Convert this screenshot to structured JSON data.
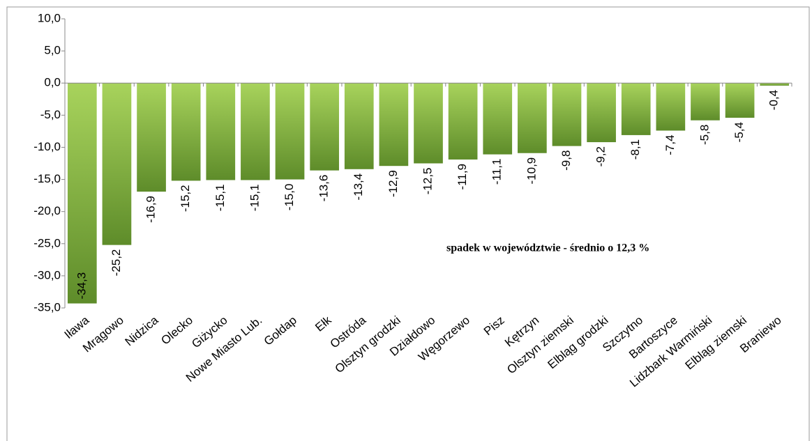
{
  "chart_data": {
    "type": "bar",
    "categories": [
      "Iława",
      "Mrągowo",
      "Nidzica",
      "Olecko",
      "Giżycko",
      "Nowe Miasto Lub.",
      "Gołdap",
      "Ełk",
      "Ostróda",
      "Olsztyn grodzki",
      "Działdowo",
      "Węgorzewo",
      "Pisz",
      "Kętrzyn",
      "Olsztyn ziemski",
      "Elbląg grodzki",
      "Szczytno",
      "Bartoszyce",
      "Lidzbark Warmiński",
      "Elbląg ziemski",
      "Braniewo"
    ],
    "values": [
      -34.3,
      -25.2,
      -16.9,
      -15.2,
      -15.1,
      -15.1,
      -15.0,
      -13.6,
      -13.4,
      -12.9,
      -12.5,
      -11.9,
      -11.1,
      -10.9,
      -9.8,
      -9.2,
      -8.1,
      -7.4,
      -5.8,
      -5.4,
      -0.4
    ],
    "value_labels": [
      "-34,3",
      "-25,2",
      "-16,9",
      "-15,2",
      "-15,1",
      "-15,1",
      "-15,0",
      "-13,6",
      "-13,4",
      "-12,9",
      "-12,5",
      "-11,9",
      "-11,1",
      "-10,9",
      "-9,8",
      "-9,2",
      "-8,1",
      "-7,4",
      "-5,8",
      "-5,4",
      "-0,4"
    ],
    "color": "#8cbb45",
    "ylim": [
      -35,
      10
    ],
    "yticks": [
      {
        "value": -35,
        "label": "-35,0"
      },
      {
        "value": -30,
        "label": "-30,0"
      },
      {
        "value": -25,
        "label": "-25,0"
      },
      {
        "value": -20,
        "label": "-20,0"
      },
      {
        "value": -15,
        "label": "-15,0"
      },
      {
        "value": -10,
        "label": "-10,0"
      },
      {
        "value": -5,
        "label": "-5,0"
      },
      {
        "value": 0,
        "label": "0,0"
      },
      {
        "value": 5,
        "label": "5,0"
      },
      {
        "value": 10,
        "label": "10,0"
      }
    ],
    "annotation": "spadek w województwie - średnio o 12,3 %"
  }
}
